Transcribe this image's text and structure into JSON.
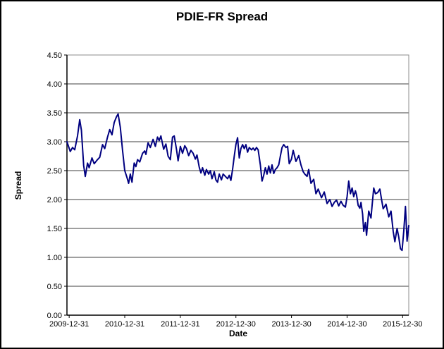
{
  "chart_data": {
    "type": "line",
    "title": "PDIE-FR Spread",
    "xlabel": "Date",
    "ylabel": "Spread",
    "legend": "none",
    "grid": "horizontal-major",
    "y_axis": {
      "min": 0.0,
      "max": 4.5,
      "step": 0.5,
      "tick_format": "0.00"
    },
    "x_axis": {
      "min": 2009.96,
      "max": 2016.11,
      "ticks": [
        {
          "pos": 2010,
          "label": "2009-12-31"
        },
        {
          "pos": 2011,
          "label": "2010-12-31"
        },
        {
          "pos": 2012,
          "label": "2011-12-31"
        },
        {
          "pos": 2013,
          "label": "2012-12-30"
        },
        {
          "pos": 2014,
          "label": "2013-12-30"
        },
        {
          "pos": 2015,
          "label": "2014-12-30"
        },
        {
          "pos": 2016,
          "label": "2015-12-30"
        }
      ]
    },
    "series": [
      {
        "name": "PDIE-FR Spread",
        "color": "#000080",
        "points": [
          [
            2009.96,
            3.0
          ],
          [
            2010.02,
            2.83
          ],
          [
            2010.06,
            2.9
          ],
          [
            2010.1,
            2.86
          ],
          [
            2010.15,
            3.1
          ],
          [
            2010.19,
            3.38
          ],
          [
            2010.22,
            3.2
          ],
          [
            2010.26,
            2.59
          ],
          [
            2010.29,
            2.4
          ],
          [
            2010.33,
            2.63
          ],
          [
            2010.36,
            2.55
          ],
          [
            2010.41,
            2.72
          ],
          [
            2010.45,
            2.62
          ],
          [
            2010.5,
            2.68
          ],
          [
            2010.55,
            2.73
          ],
          [
            2010.6,
            2.95
          ],
          [
            2010.64,
            2.88
          ],
          [
            2010.69,
            3.08
          ],
          [
            2010.73,
            3.21
          ],
          [
            2010.77,
            3.12
          ],
          [
            2010.81,
            3.33
          ],
          [
            2010.85,
            3.43
          ],
          [
            2010.88,
            3.48
          ],
          [
            2010.92,
            3.25
          ],
          [
            2010.96,
            2.85
          ],
          [
            2011.0,
            2.5
          ],
          [
            2011.04,
            2.38
          ],
          [
            2011.07,
            2.28
          ],
          [
            2011.1,
            2.44
          ],
          [
            2011.13,
            2.3
          ],
          [
            2011.17,
            2.63
          ],
          [
            2011.2,
            2.57
          ],
          [
            2011.23,
            2.69
          ],
          [
            2011.27,
            2.65
          ],
          [
            2011.32,
            2.8
          ],
          [
            2011.36,
            2.84
          ],
          [
            2011.38,
            2.78
          ],
          [
            2011.42,
            2.98
          ],
          [
            2011.46,
            2.9
          ],
          [
            2011.51,
            3.04
          ],
          [
            2011.55,
            2.92
          ],
          [
            2011.59,
            3.08
          ],
          [
            2011.62,
            3.02
          ],
          [
            2011.65,
            3.1
          ],
          [
            2011.7,
            2.87
          ],
          [
            2011.74,
            2.96
          ],
          [
            2011.78,
            2.75
          ],
          [
            2011.82,
            2.69
          ],
          [
            2011.86,
            3.08
          ],
          [
            2011.89,
            3.1
          ],
          [
            2011.93,
            2.87
          ],
          [
            2011.96,
            2.67
          ],
          [
            2012.0,
            2.92
          ],
          [
            2012.04,
            2.8
          ],
          [
            2012.08,
            2.93
          ],
          [
            2012.11,
            2.88
          ],
          [
            2012.15,
            2.76
          ],
          [
            2012.19,
            2.85
          ],
          [
            2012.23,
            2.8
          ],
          [
            2012.27,
            2.7
          ],
          [
            2012.3,
            2.77
          ],
          [
            2012.34,
            2.56
          ],
          [
            2012.37,
            2.46
          ],
          [
            2012.4,
            2.55
          ],
          [
            2012.44,
            2.42
          ],
          [
            2012.47,
            2.52
          ],
          [
            2012.51,
            2.44
          ],
          [
            2012.54,
            2.5
          ],
          [
            2012.57,
            2.36
          ],
          [
            2012.61,
            2.48
          ],
          [
            2012.64,
            2.34
          ],
          [
            2012.67,
            2.3
          ],
          [
            2012.7,
            2.44
          ],
          [
            2012.74,
            2.34
          ],
          [
            2012.77,
            2.44
          ],
          [
            2012.81,
            2.4
          ],
          [
            2012.85,
            2.36
          ],
          [
            2012.88,
            2.42
          ],
          [
            2012.91,
            2.33
          ],
          [
            2012.94,
            2.52
          ],
          [
            2012.97,
            2.75
          ],
          [
            2013.0,
            2.95
          ],
          [
            2013.03,
            3.07
          ],
          [
            2013.06,
            2.72
          ],
          [
            2013.09,
            2.88
          ],
          [
            2013.12,
            2.95
          ],
          [
            2013.15,
            2.88
          ],
          [
            2013.18,
            2.95
          ],
          [
            2013.21,
            2.82
          ],
          [
            2013.24,
            2.9
          ],
          [
            2013.28,
            2.86
          ],
          [
            2013.31,
            2.89
          ],
          [
            2013.34,
            2.85
          ],
          [
            2013.37,
            2.9
          ],
          [
            2013.4,
            2.86
          ],
          [
            2013.44,
            2.6
          ],
          [
            2013.47,
            2.32
          ],
          [
            2013.5,
            2.42
          ],
          [
            2013.53,
            2.55
          ],
          [
            2013.56,
            2.44
          ],
          [
            2013.59,
            2.58
          ],
          [
            2013.62,
            2.46
          ],
          [
            2013.65,
            2.6
          ],
          [
            2013.68,
            2.45
          ],
          [
            2013.71,
            2.52
          ],
          [
            2013.74,
            2.55
          ],
          [
            2013.77,
            2.6
          ],
          [
            2013.8,
            2.75
          ],
          [
            2013.83,
            2.9
          ],
          [
            2013.86,
            2.95
          ],
          [
            2013.9,
            2.9
          ],
          [
            2013.93,
            2.92
          ],
          [
            2013.96,
            2.62
          ],
          [
            2014.0,
            2.7
          ],
          [
            2014.03,
            2.85
          ],
          [
            2014.08,
            2.66
          ],
          [
            2014.13,
            2.76
          ],
          [
            2014.17,
            2.6
          ],
          [
            2014.21,
            2.48
          ],
          [
            2014.24,
            2.44
          ],
          [
            2014.28,
            2.4
          ],
          [
            2014.31,
            2.52
          ],
          [
            2014.35,
            2.28
          ],
          [
            2014.4,
            2.35
          ],
          [
            2014.44,
            2.1
          ],
          [
            2014.48,
            2.18
          ],
          [
            2014.54,
            2.03
          ],
          [
            2014.59,
            2.13
          ],
          [
            2014.64,
            1.93
          ],
          [
            2014.69,
            2.0
          ],
          [
            2014.73,
            1.88
          ],
          [
            2014.77,
            1.95
          ],
          [
            2014.81,
            1.99
          ],
          [
            2014.85,
            1.89
          ],
          [
            2014.89,
            1.97
          ],
          [
            2014.93,
            1.9
          ],
          [
            2014.97,
            1.87
          ],
          [
            2015.0,
            2.05
          ],
          [
            2015.03,
            2.32
          ],
          [
            2015.06,
            2.1
          ],
          [
            2015.09,
            2.2
          ],
          [
            2015.12,
            2.05
          ],
          [
            2015.15,
            2.15
          ],
          [
            2015.17,
            2.08
          ],
          [
            2015.2,
            1.9
          ],
          [
            2015.23,
            1.85
          ],
          [
            2015.25,
            1.95
          ],
          [
            2015.28,
            1.75
          ],
          [
            2015.3,
            1.45
          ],
          [
            2015.33,
            1.6
          ],
          [
            2015.35,
            1.38
          ],
          [
            2015.39,
            1.8
          ],
          [
            2015.43,
            1.68
          ],
          [
            2015.45,
            1.9
          ],
          [
            2015.48,
            2.2
          ],
          [
            2015.51,
            2.1
          ],
          [
            2015.55,
            2.12
          ],
          [
            2015.59,
            2.18
          ],
          [
            2015.62,
            2.0
          ],
          [
            2015.65,
            1.84
          ],
          [
            2015.7,
            1.92
          ],
          [
            2015.75,
            1.7
          ],
          [
            2015.79,
            1.8
          ],
          [
            2015.83,
            1.45
          ],
          [
            2015.86,
            1.27
          ],
          [
            2015.9,
            1.5
          ],
          [
            2015.93,
            1.35
          ],
          [
            2015.96,
            1.15
          ],
          [
            2015.99,
            1.12
          ],
          [
            2016.02,
            1.45
          ],
          [
            2016.05,
            1.88
          ],
          [
            2016.08,
            1.28
          ],
          [
            2016.11,
            1.55
          ]
        ]
      }
    ]
  }
}
